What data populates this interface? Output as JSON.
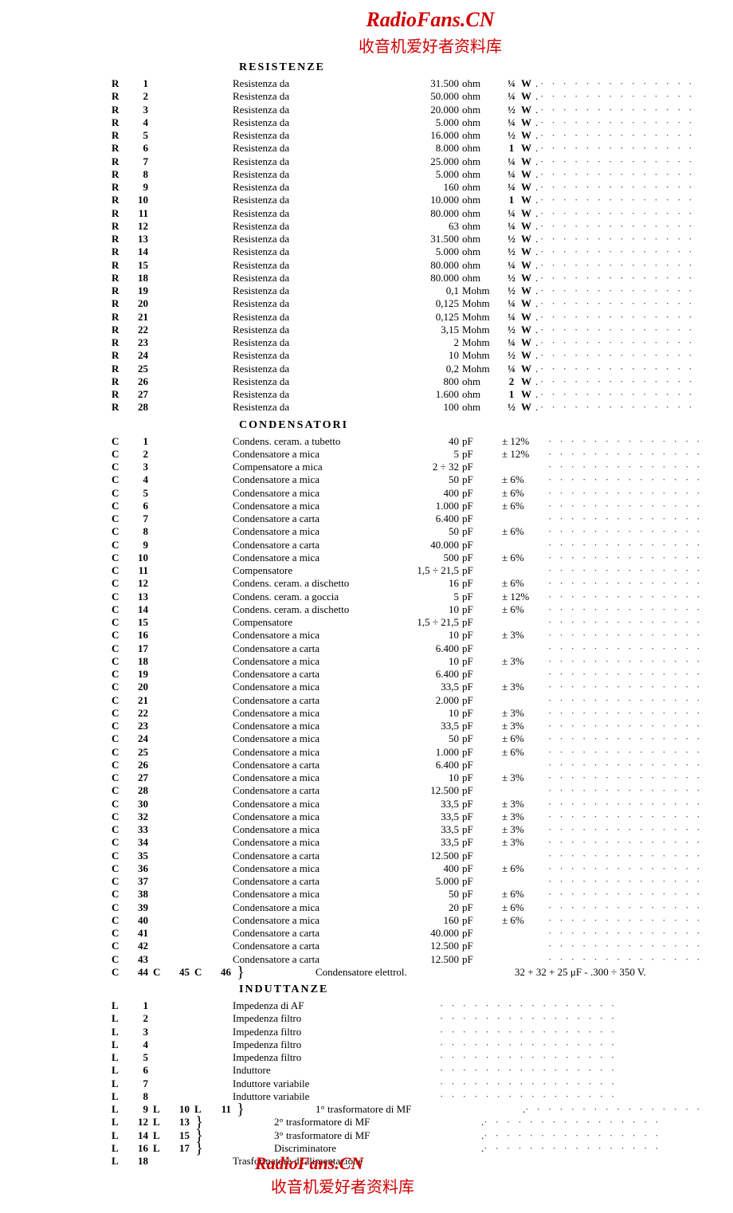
{
  "header": {
    "brand": "RadioFans.CN",
    "cn": "收音机爱好者资料库"
  },
  "footer": {
    "brand": "RadioFans.CN",
    "cn": "收音机爱好者资料库",
    "trasf": "Trasformatore di alimentazione"
  },
  "sections": {
    "resistors": {
      "title": "RESISTENZE"
    },
    "capacitors": {
      "title": "CONDENSATORI"
    },
    "inductors": {
      "title": "INDUTTANZE"
    }
  },
  "resistors": [
    {
      "n": "1",
      "v": "31.500",
      "u": "ohm",
      "w": "¼"
    },
    {
      "n": "2",
      "v": "50.000",
      "u": "ohm",
      "w": "¼"
    },
    {
      "n": "3",
      "v": "20.000",
      "u": "ohm",
      "w": "½"
    },
    {
      "n": "4",
      "v": "5.000",
      "u": "ohm",
      "w": "¼"
    },
    {
      "n": "5",
      "v": "16.000",
      "u": "ohm",
      "w": "½"
    },
    {
      "n": "6",
      "v": "8.000",
      "u": "ohm",
      "w": "1"
    },
    {
      "n": "7",
      "v": "25.000",
      "u": "ohm",
      "w": "¼"
    },
    {
      "n": "8",
      "v": "5.000",
      "u": "ohm",
      "w": "¼"
    },
    {
      "n": "9",
      "v": "160",
      "u": "ohm",
      "w": "¼"
    },
    {
      "n": "10",
      "v": "10.000",
      "u": "ohm",
      "w": "1"
    },
    {
      "n": "11",
      "v": "80.000",
      "u": "ohm",
      "w": "¼"
    },
    {
      "n": "12",
      "v": "63",
      "u": "ohm",
      "w": "¼"
    },
    {
      "n": "13",
      "v": "31.500",
      "u": "ohm",
      "w": "½"
    },
    {
      "n": "14",
      "v": "5.000",
      "u": "ohm",
      "w": "½"
    },
    {
      "n": "15",
      "v": "80.000",
      "u": "ohm",
      "w": "¼"
    },
    {
      "n": "18",
      "v": "80.000",
      "u": "ohm",
      "w": "½"
    },
    {
      "n": "19",
      "v": "0,1",
      "u": "Mohm",
      "w": "½"
    },
    {
      "n": "20",
      "v": "0,125",
      "u": "Mohm",
      "w": "¼"
    },
    {
      "n": "21",
      "v": "0,125",
      "u": "Mohm",
      "w": "¼"
    },
    {
      "n": "22",
      "v": "3,15",
      "u": "Mohm",
      "w": "½"
    },
    {
      "n": "23",
      "v": "2",
      "u": "Mohm",
      "w": "¼"
    },
    {
      "n": "24",
      "v": "10",
      "u": "Mohm",
      "w": "½"
    },
    {
      "n": "25",
      "v": "0,2",
      "u": "Mohm",
      "w": "¼"
    },
    {
      "n": "26",
      "v": "800",
      "u": "ohm",
      "w": "2"
    },
    {
      "n": "27",
      "v": "1.600",
      "u": "ohm",
      "w": "1"
    },
    {
      "n": "28",
      "v": "100",
      "u": "ohm",
      "w": "½"
    }
  ],
  "res_label": "Resistenza  da",
  "w_label": "W",
  "capacitors": [
    {
      "n": "1",
      "d": "Condens. ceram. a tubetto",
      "v": "40",
      "u": "pF",
      "t": "± 12%"
    },
    {
      "n": "2",
      "d": "Condensatore a mica",
      "v": "5",
      "u": "pF",
      "t": "± 12%"
    },
    {
      "n": "3",
      "d": "Compensatore a mica",
      "v": "2 ÷ 32",
      "u": "pF",
      "t": ""
    },
    {
      "n": "4",
      "d": "Condensatore a mica",
      "v": "50",
      "u": "pF",
      "t": "± 6%"
    },
    {
      "n": "5",
      "d": "Condensatore a mica",
      "v": "400",
      "u": "pF",
      "t": "± 6%"
    },
    {
      "n": "6",
      "d": "Condensatore a mica",
      "v": "1.000",
      "u": "pF",
      "t": "± 6%"
    },
    {
      "n": "7",
      "d": "Condensatore a carta",
      "v": "6.400",
      "u": "pF",
      "t": ""
    },
    {
      "n": "8",
      "d": "Condensatore a mica",
      "v": "50",
      "u": "pF",
      "t": "± 6%"
    },
    {
      "n": "9",
      "d": "Condensatore a carta",
      "v": "40.000",
      "u": "pF",
      "t": ""
    },
    {
      "n": "10",
      "d": "Condensatore a mica",
      "v": "500",
      "u": "pF",
      "t": "± 6%"
    },
    {
      "n": "11",
      "d": "Compensatore",
      "v": "1,5 ÷ 21,5",
      "u": "pF",
      "t": ""
    },
    {
      "n": "12",
      "d": "Condens. ceram. a dischetto",
      "v": "16",
      "u": "pF",
      "t": "± 6%"
    },
    {
      "n": "13",
      "d": "Condens. ceram. a goccia",
      "v": "5",
      "u": "pF",
      "t": "± 12%"
    },
    {
      "n": "14",
      "d": "Condens. ceram. a dischetto",
      "v": "10",
      "u": "pF",
      "t": "± 6%"
    },
    {
      "n": "15",
      "d": "Compensatore",
      "v": "1,5 ÷ 21,5",
      "u": "pF",
      "t": ""
    },
    {
      "n": "16",
      "d": "Condensatore a mica",
      "v": "10",
      "u": "pF",
      "t": "± 3%"
    },
    {
      "n": "17",
      "d": "Condensatore a carta",
      "v": "6.400",
      "u": "pF",
      "t": ""
    },
    {
      "n": "18",
      "d": "Condensatore a mica",
      "v": "10",
      "u": "pF",
      "t": "± 3%"
    },
    {
      "n": "19",
      "d": "Condensatore a carta",
      "v": "6.400",
      "u": "pF",
      "t": ""
    },
    {
      "n": "20",
      "d": "Condensatore a mica",
      "v": "33,5",
      "u": "pF",
      "t": "± 3%"
    },
    {
      "n": "21",
      "d": "Condensatore a carta",
      "v": "2.000",
      "u": "pF",
      "t": ""
    },
    {
      "n": "22",
      "d": "Condensatore a mica",
      "v": "10",
      "u": "pF",
      "t": "± 3%"
    },
    {
      "n": "23",
      "d": "Condensatore a mica",
      "v": "33,5",
      "u": "pF",
      "t": "± 3%"
    },
    {
      "n": "24",
      "d": "Condensatore a mica",
      "v": "50",
      "u": "pF",
      "t": "± 6%"
    },
    {
      "n": "25",
      "d": "Condensatore a mica",
      "v": "1.000",
      "u": "pF",
      "t": "± 6%"
    },
    {
      "n": "26",
      "d": "Condensatore a carta",
      "v": "6.400",
      "u": "pF",
      "t": ""
    },
    {
      "n": "27",
      "d": "Condensatore a mica",
      "v": "10",
      "u": "pF",
      "t": "± 3%"
    },
    {
      "n": "28",
      "d": "Condensatore a carta",
      "v": "12.500",
      "u": "pF",
      "t": ""
    },
    {
      "n": "30",
      "d": "Condensatore a mica",
      "v": "33,5",
      "u": "pF",
      "t": "± 3%"
    },
    {
      "n": "32",
      "d": "Condensatore a mica",
      "v": "33,5",
      "u": "pF",
      "t": "± 3%"
    },
    {
      "n": "33",
      "d": "Condensatore a mica",
      "v": "33,5",
      "u": "pF",
      "t": "± 3%"
    },
    {
      "n": "34",
      "d": "Condensatore a mica",
      "v": "33,5",
      "u": "pF",
      "t": "± 3%"
    },
    {
      "n": "35",
      "d": "Condensatore a carta",
      "v": "12.500",
      "u": "pF",
      "t": ""
    },
    {
      "n": "36",
      "d": "Condensatore a mica",
      "v": "400",
      "u": "pF",
      "t": "± 6%"
    },
    {
      "n": "37",
      "d": "Condensatore a carta",
      "v": "5.000",
      "u": "pF",
      "t": ""
    },
    {
      "n": "38",
      "d": "Condensatore a mica",
      "v": "50",
      "u": "pF",
      "t": "± 6%"
    },
    {
      "n": "39",
      "d": "Condensatore a mica",
      "v": "20",
      "u": "pF",
      "t": "± 6%"
    },
    {
      "n": "40",
      "d": "Condensatore a mica",
      "v": "160",
      "u": "pF",
      "t": "± 6%"
    },
    {
      "n": "41",
      "d": "Condensatore a carta",
      "v": "40.000",
      "u": "pF",
      "t": ""
    },
    {
      "n": "42",
      "d": "Condensatore a carta",
      "v": "12.500",
      "u": "pF",
      "t": ""
    },
    {
      "n": "43",
      "d": "Condensatore a carta",
      "v": "12.500",
      "u": "pF",
      "t": ""
    }
  ],
  "cap_elec": {
    "refs": [
      "44",
      "45",
      "46"
    ],
    "desc": "Condensatore elettrol.",
    "spec": "32 + 32 + 25  μF  - .300 ÷ 350  V."
  },
  "inductors": [
    {
      "n": "1",
      "d": "Impedenza di AF"
    },
    {
      "n": "2",
      "d": "Impedenza filtro"
    },
    {
      "n": "3",
      "d": "Impedenza filtro"
    },
    {
      "n": "4",
      "d": "Impedenza filtro"
    },
    {
      "n": "5",
      "d": "Impedenza filtro"
    },
    {
      "n": "6",
      "d": "Induttore"
    },
    {
      "n": "7",
      "d": "Induttore  variabile"
    },
    {
      "n": "8",
      "d": "Induttore  variabile"
    }
  ],
  "ind_groups": [
    {
      "refs": [
        "9",
        "10",
        "11"
      ],
      "d": "1°  trasformatore  di  MF"
    },
    {
      "refs": [
        "12",
        "13"
      ],
      "d": "2°  trasformatore  di  MF"
    },
    {
      "refs": [
        "14",
        "15"
      ],
      "d": "3°  trasformatore  di  MF"
    },
    {
      "refs": [
        "16",
        "17"
      ],
      "d": "Discriminatore"
    }
  ],
  "ind_last": {
    "n": "18"
  }
}
